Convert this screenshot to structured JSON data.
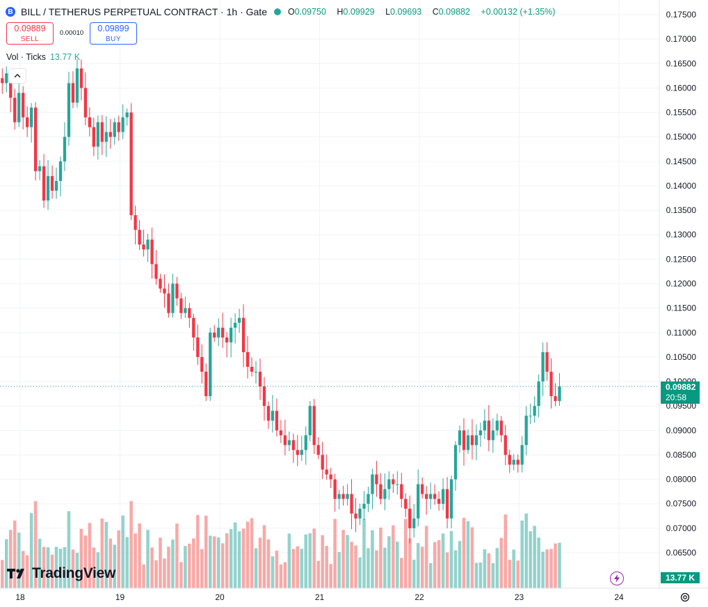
{
  "header": {
    "coin_icon": "B",
    "symbol": "BILL / TETHERUS PERPETUAL CONTRACT · 1h · Gate",
    "status_dot_color": "#26a69a",
    "o_key": "O",
    "o_val": "0.09750",
    "h_key": "H",
    "h_val": "0.09929",
    "l_key": "L",
    "l_val": "0.09693",
    "c_key": "C",
    "c_val": "0.09882",
    "change": "+0.00132 (+1.35%)"
  },
  "trade": {
    "sell_price": "0.09889",
    "sell_label": "SELL",
    "spread": "0.00010",
    "buy_price": "0.09899",
    "buy_label": "BUY"
  },
  "volume_legend": {
    "label": "Vol · Ticks",
    "value": "13.77 K"
  },
  "branding": {
    "logo_text": "TradingView"
  },
  "labels": {
    "last_price": "0.09882",
    "countdown": "20:58",
    "last_volume": "13.77 K"
  },
  "colors": {
    "up": "#26a69a",
    "down": "#f23645",
    "vol_up": "#93d2cc",
    "vol_down": "#f7a9a7"
  },
  "chart_data": {
    "type": "candlestick",
    "y_ticks": [
      "0.17500",
      "0.17000",
      "0.16500",
      "0.16000",
      "0.15500",
      "0.15000",
      "0.14500",
      "0.14000",
      "0.13500",
      "0.13000",
      "0.12500",
      "0.12000",
      "0.11500",
      "0.11000",
      "0.10500",
      "0.10000",
      "0.09500",
      "0.09000",
      "0.08500",
      "0.08000",
      "0.07500",
      "0.07000",
      "0.06500"
    ],
    "x_ticks": [
      "18",
      "19",
      "20",
      "21",
      "22",
      "23",
      "24"
    ],
    "ylim": [
      0.0625,
      0.1775
    ],
    "bars_per_day": 24,
    "start_day": "17.8",
    "close": [
      0.161,
      0.163,
      0.158,
      0.153,
      0.159,
      0.154,
      0.152,
      0.156,
      0.143,
      0.144,
      0.137,
      0.142,
      0.139,
      0.141,
      0.145,
      0.15,
      0.161,
      0.157,
      0.164,
      0.16,
      0.154,
      0.152,
      0.148,
      0.153,
      0.149,
      0.151,
      0.15,
      0.153,
      0.151,
      0.154,
      0.155,
      0.134,
      0.131,
      0.128,
      0.127,
      0.129,
      0.124,
      0.121,
      0.119,
      0.118,
      0.114,
      0.12,
      0.117,
      0.114,
      0.115,
      0.113,
      0.109,
      0.105,
      0.102,
      0.097,
      0.11,
      0.109,
      0.111,
      0.109,
      0.108,
      0.111,
      0.112,
      0.113,
      0.106,
      0.103,
      0.102,
      0.102,
      0.099,
      0.095,
      0.092,
      0.094,
      0.09,
      0.089,
      0.087,
      0.088,
      0.086,
      0.085,
      0.086,
      0.089,
      0.095,
      0.087,
      0.085,
      0.082,
      0.081,
      0.08,
      0.076,
      0.077,
      0.076,
      0.077,
      0.073,
      0.072,
      0.074,
      0.075,
      0.077,
      0.081,
      0.079,
      0.076,
      0.078,
      0.08,
      0.079,
      0.079,
      0.076,
      0.074,
      0.07,
      0.072,
      0.079,
      0.077,
      0.076,
      0.077,
      0.076,
      0.075,
      0.078,
      0.072,
      0.08,
      0.087,
      0.09,
      0.086,
      0.089,
      0.087,
      0.089,
      0.09,
      0.092,
      0.088,
      0.09,
      0.092,
      0.089,
      0.085,
      0.083,
      0.084,
      0.083,
      0.087,
      0.093,
      0.093,
      0.095,
      0.1,
      0.106,
      0.102,
      0.097,
      0.096,
      0.099
    ]
  }
}
